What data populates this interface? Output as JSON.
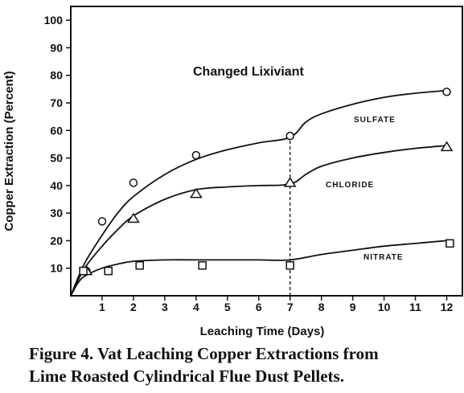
{
  "chart_data": {
    "type": "line",
    "annotation": "Changed Lixiviant",
    "xlabel": "Leaching Time (Days)",
    "ylabel": "Copper Extraction (Percent)",
    "xlim": [
      0,
      12.5
    ],
    "ylim": [
      0,
      105
    ],
    "x_ticks": [
      1,
      2,
      3,
      4,
      5,
      6,
      7,
      8,
      9,
      10,
      11,
      12
    ],
    "y_ticks": [
      10,
      20,
      30,
      40,
      50,
      60,
      70,
      80,
      90,
      100
    ],
    "x_tick_labels": [
      "1",
      "2",
      "3",
      "4",
      "5",
      "6",
      "7",
      "8",
      "9",
      "10",
      "11",
      "12"
    ],
    "y_tick_labels": [
      "10",
      "20",
      "30",
      "40",
      "50",
      "60",
      "70",
      "80",
      "90",
      "100"
    ],
    "divider_x": 7,
    "series": [
      {
        "name": "SULFATE",
        "marker": "circle",
        "points": [
          [
            0.5,
            9
          ],
          [
            1,
            27
          ],
          [
            2,
            41
          ],
          [
            4,
            51
          ],
          [
            7,
            58
          ],
          [
            12,
            74
          ]
        ],
        "curve": [
          [
            0,
            0
          ],
          [
            0.25,
            7
          ],
          [
            0.5,
            13
          ],
          [
            1,
            22
          ],
          [
            1.5,
            30
          ],
          [
            2,
            36
          ],
          [
            3,
            44
          ],
          [
            4,
            49.5
          ],
          [
            5,
            53
          ],
          [
            6,
            55.5
          ],
          [
            7,
            57.5
          ],
          [
            7.5,
            63
          ],
          [
            8,
            66
          ],
          [
            9,
            69.5
          ],
          [
            10,
            72
          ],
          [
            11,
            73.5
          ],
          [
            12,
            74.5
          ]
        ]
      },
      {
        "name": "CHLORIDE",
        "marker": "triangle",
        "points": [
          [
            0.5,
            9
          ],
          [
            2,
            28
          ],
          [
            4,
            37
          ],
          [
            7,
            41
          ],
          [
            12,
            54
          ]
        ],
        "curve": [
          [
            0,
            0
          ],
          [
            0.25,
            6
          ],
          [
            0.5,
            11
          ],
          [
            1,
            18
          ],
          [
            1.5,
            24
          ],
          [
            2,
            29
          ],
          [
            3,
            35
          ],
          [
            4,
            38.5
          ],
          [
            5,
            39.5
          ],
          [
            6,
            40
          ],
          [
            7,
            40.5
          ],
          [
            7.5,
            44
          ],
          [
            8,
            47
          ],
          [
            9,
            50
          ],
          [
            10,
            52
          ],
          [
            11,
            53.5
          ],
          [
            12,
            54.5
          ]
        ]
      },
      {
        "name": "NITRATE",
        "marker": "square",
        "points": [
          [
            0.4,
            9
          ],
          [
            1.2,
            9
          ],
          [
            2.2,
            11
          ],
          [
            4.2,
            11
          ],
          [
            7,
            11
          ],
          [
            12.1,
            19
          ]
        ],
        "curve": [
          [
            0,
            0
          ],
          [
            0.25,
            5
          ],
          [
            0.5,
            7.5
          ],
          [
            1,
            10
          ],
          [
            1.5,
            11.5
          ],
          [
            2,
            12.5
          ],
          [
            3,
            13
          ],
          [
            4,
            13
          ],
          [
            5,
            13
          ],
          [
            6,
            13
          ],
          [
            7,
            13
          ],
          [
            8,
            15
          ],
          [
            9,
            16.5
          ],
          [
            10,
            18
          ],
          [
            11,
            19
          ],
          [
            12,
            20
          ]
        ]
      }
    ],
    "series_label_text": [
      "SULFATE",
      "CHLORIDE",
      "NITRATE"
    ]
  },
  "caption": {
    "line1": "Figure 4.  Vat Leaching Copper Extractions from",
    "line2": "Lime Roasted Cylindrical Flue Dust Pellets."
  }
}
